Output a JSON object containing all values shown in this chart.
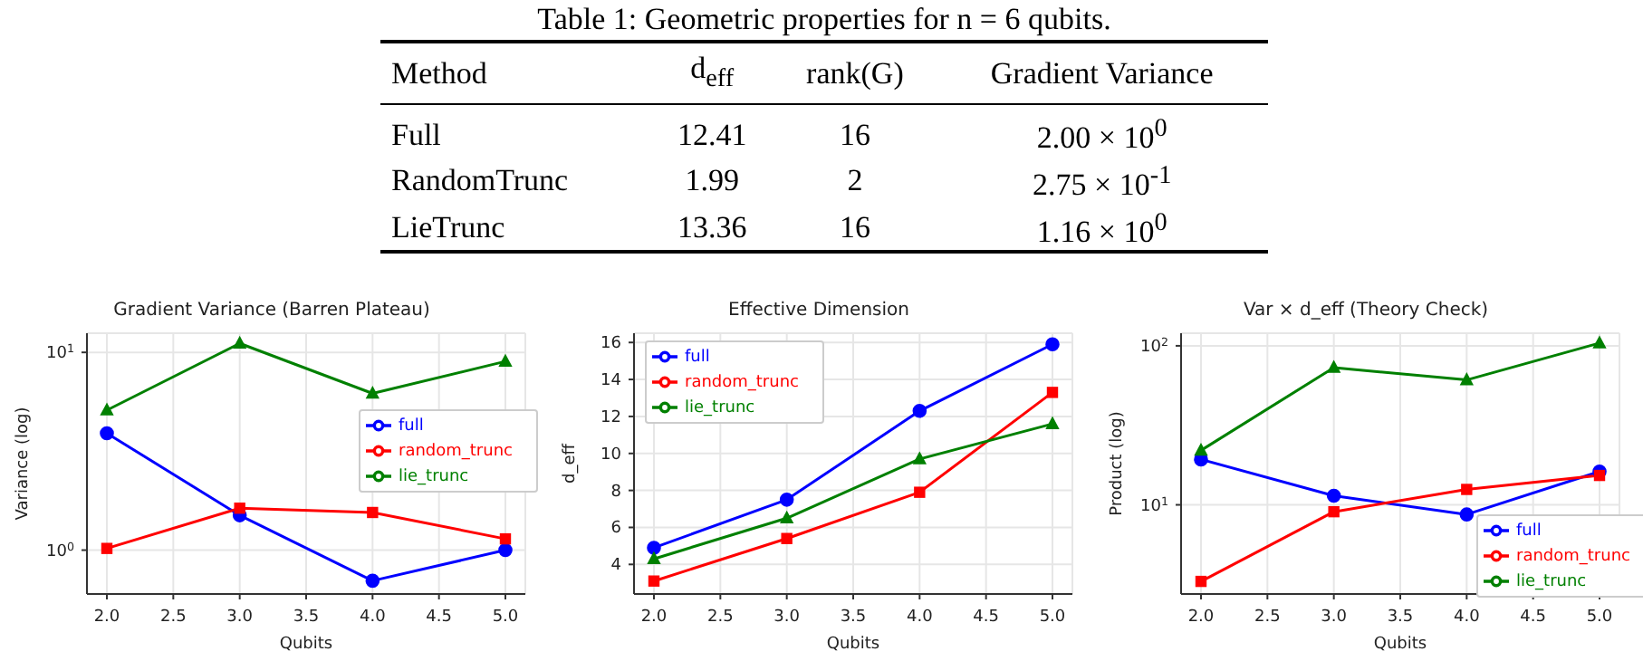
{
  "chart_data": [
    {
      "type": "other",
      "title": "Table 1: Geometric properties for n = 6 qubits.",
      "annotations": [
        "Method",
        "d$_{eff}$",
        "rank(G)",
        "Gradient Variance",
        "Full",
        "12.41",
        "16",
        "2.00 × 10$^{0}$",
        "RandomTrunc",
        "1.99",
        "2",
        "2.75 × 10$^{-1}$",
        "LieTrunc",
        "13.36",
        "16",
        "1.16 × 10$^{0}$"
      ]
    },
    {
      "type": "line",
      "title": "Gradient Variance (Barren Plateau)",
      "xlabel": "Qubits",
      "ylabel": "Variance (log)",
      "x": [
        2,
        3,
        4,
        5
      ],
      "log": "y",
      "grid": true,
      "legend": "right",
      "xlim": [
        1.85,
        5.15
      ],
      "xticks": [
        {
          "value": 2,
          "label": "2.0"
        },
        {
          "value": 2.5,
          "label": "2.5"
        },
        {
          "value": 3,
          "label": "3.0"
        },
        {
          "value": 3.5,
          "label": "3.5"
        },
        {
          "value": 4,
          "label": "4.0"
        },
        {
          "value": 4.5,
          "label": "4.5"
        },
        {
          "value": 5,
          "label": "5.0"
        }
      ],
      "ylim": [
        0.6,
        12.5
      ],
      "yticks": [
        {
          "value": 1,
          "label": "10$^{0}$"
        },
        {
          "value": 10,
          "label": "10$^{1}$"
        }
      ],
      "series": [
        {
          "name": "full",
          "color": "#0000ff",
          "marker": "circle",
          "values": [
            3.9,
            1.5,
            0.7,
            1.0
          ]
        },
        {
          "name": "random_trunc",
          "color": "#ff0000",
          "marker": "square",
          "values": [
            1.02,
            1.63,
            1.55,
            1.14
          ]
        },
        {
          "name": "lie_trunc",
          "color": "#008000",
          "marker": "triangle",
          "values": [
            5.1,
            11.1,
            6.2,
            9.0
          ]
        }
      ]
    },
    {
      "type": "line",
      "title": "Effective Dimension",
      "xlabel": "Qubits",
      "ylabel": "d_eff",
      "x": [
        2,
        3,
        4,
        5
      ],
      "grid": true,
      "legend": "top left",
      "xlim": [
        1.85,
        5.15
      ],
      "xticks": [
        {
          "value": 2,
          "label": "2.0"
        },
        {
          "value": 2.5,
          "label": "2.5"
        },
        {
          "value": 3,
          "label": "3.0"
        },
        {
          "value": 3.5,
          "label": "3.5"
        },
        {
          "value": 4,
          "label": "4.0"
        },
        {
          "value": 4.5,
          "label": "4.5"
        },
        {
          "value": 5,
          "label": "5.0"
        }
      ],
      "ylim": [
        2.4,
        16.5
      ],
      "yticks": [
        4,
        6,
        8,
        10,
        12,
        14,
        16
      ],
      "series": [
        {
          "name": "full",
          "color": "#0000ff",
          "marker": "circle",
          "values": [
            4.9,
            7.5,
            12.3,
            15.9
          ]
        },
        {
          "name": "random_trunc",
          "color": "#ff0000",
          "marker": "square",
          "values": [
            3.1,
            5.4,
            7.9,
            13.3
          ]
        },
        {
          "name": "lie_trunc",
          "color": "#008000",
          "marker": "triangle",
          "values": [
            4.3,
            6.5,
            9.7,
            11.6
          ]
        }
      ]
    },
    {
      "type": "line",
      "title": "Var × d_eff (Theory Check)",
      "xlabel": "Qubits",
      "ylabel": "Product (log)",
      "x": [
        2,
        3,
        4,
        5
      ],
      "log": "y",
      "grid": true,
      "legend": "bottom right",
      "xlim": [
        1.85,
        5.15
      ],
      "xticks": [
        {
          "value": 2,
          "label": "2.0"
        },
        {
          "value": 2.5,
          "label": "2.5"
        },
        {
          "value": 3,
          "label": "3.0"
        },
        {
          "value": 3.5,
          "label": "3.5"
        },
        {
          "value": 4,
          "label": "4.0"
        },
        {
          "value": 4.5,
          "label": "4.5"
        },
        {
          "value": 5,
          "label": "5.0"
        }
      ],
      "ylim": [
        2.75,
        120
      ],
      "yticks": [
        {
          "value": 10,
          "label": "10$^{1}$"
        },
        {
          "value": 100,
          "label": "10$^{2}$"
        }
      ],
      "series": [
        {
          "name": "full",
          "color": "#0000ff",
          "marker": "circle",
          "values": [
            19.3,
            11.4,
            8.7,
            16.2
          ]
        },
        {
          "name": "random_trunc",
          "color": "#ff0000",
          "marker": "square",
          "values": [
            3.3,
            9.05,
            12.5,
            15.3
          ]
        },
        {
          "name": "lie_trunc",
          "color": "#008000",
          "marker": "triangle",
          "values": [
            22,
            73,
            61,
            104
          ]
        }
      ]
    }
  ]
}
